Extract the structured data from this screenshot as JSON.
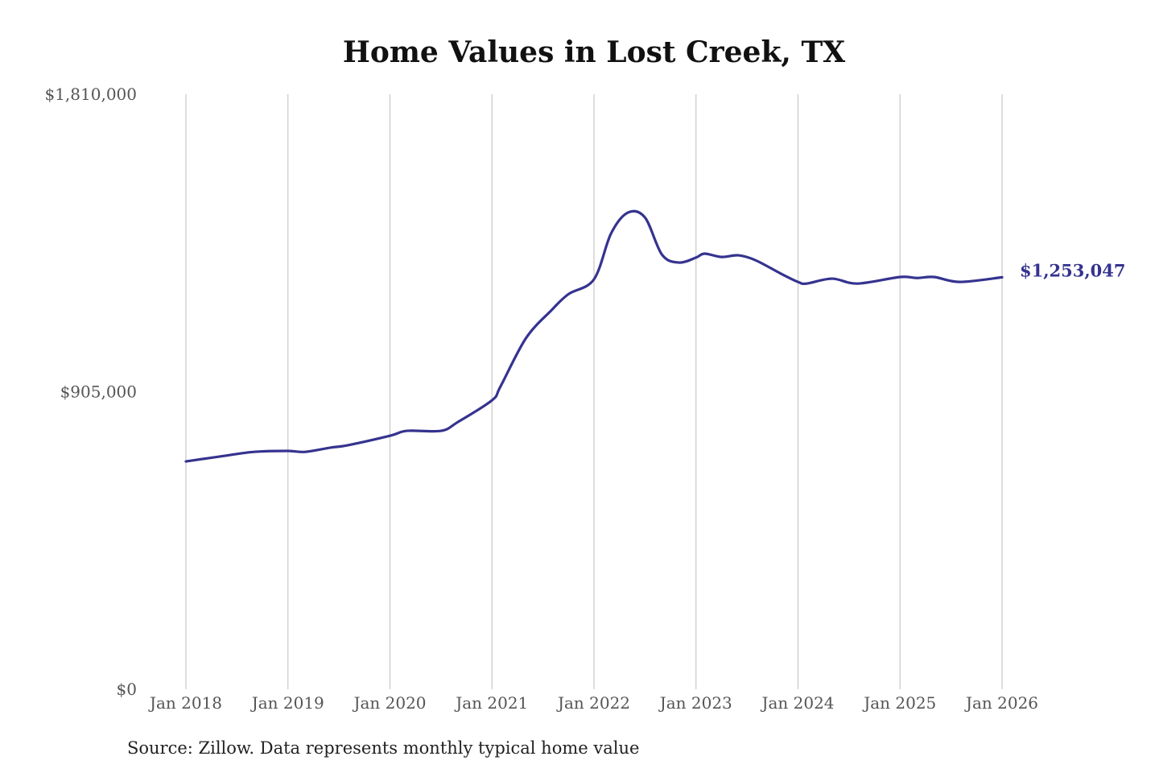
{
  "chart_data": {
    "type": "line",
    "title": "Home Values in Lost Creek, TX",
    "xlabel": "",
    "ylabel": "",
    "ylim": [
      0,
      1810000
    ],
    "y_ticks": [
      "$1,810,000",
      "$905,000",
      "$0"
    ],
    "y_tick_values": [
      1810000,
      905000,
      0
    ],
    "x_ticks": [
      "Jan 2018",
      "Jan 2019",
      "Jan 2020",
      "Jan 2021",
      "Jan 2022",
      "Jan 2023",
      "Jan 2024",
      "Jan 2025",
      "Jan 2026"
    ],
    "x_tick_values": [
      "2018-01",
      "2019-01",
      "2020-01",
      "2021-01",
      "2022-01",
      "2023-01",
      "2024-01",
      "2025-01",
      "2026-01"
    ],
    "grid": "vertical",
    "line_color": "#35338f",
    "end_label": "$1,253,047",
    "x": [
      "2018-01",
      "2018-05",
      "2018-09",
      "2019-01",
      "2019-03",
      "2019-06",
      "2019-08",
      "2020-01",
      "2020-03",
      "2020-07",
      "2020-09",
      "2021-01",
      "2021-02",
      "2021-05",
      "2021-08",
      "2021-10",
      "2022-01",
      "2022-03",
      "2022-05",
      "2022-07",
      "2022-09",
      "2022-11",
      "2023-01",
      "2023-02",
      "2023-04",
      "2023-06",
      "2023-08",
      "2023-11",
      "2024-01",
      "2024-02",
      "2024-05",
      "2024-08",
      "2025-01",
      "2025-03",
      "2025-05",
      "2025-08",
      "2026-01"
    ],
    "values": [
      693000,
      708000,
      722000,
      725000,
      722000,
      735000,
      742000,
      771000,
      786000,
      786000,
      813000,
      879000,
      921000,
      1068000,
      1153000,
      1202000,
      1247000,
      1386000,
      1450000,
      1435000,
      1322000,
      1298000,
      1313000,
      1325000,
      1315000,
      1320000,
      1305000,
      1264000,
      1239000,
      1234000,
      1249000,
      1234000,
      1254000,
      1251000,
      1254000,
      1239000,
      1253047
    ]
  },
  "source": "Source: Zillow. Data represents monthly typical home value"
}
